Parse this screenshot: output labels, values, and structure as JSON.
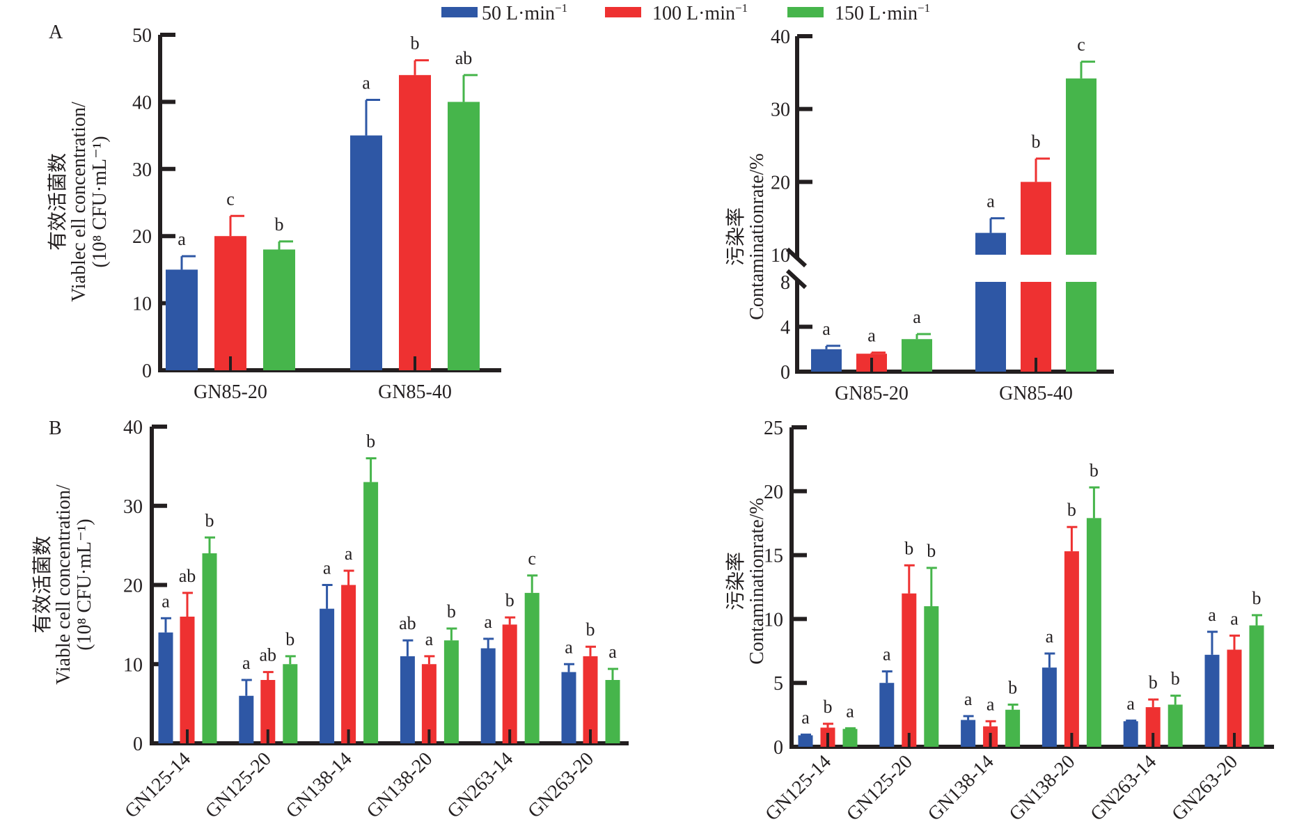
{
  "legend": {
    "items": [
      {
        "label": "50 L·min",
        "sup": "−1",
        "color": "#2E57A5"
      },
      {
        "label": "100 L·min",
        "sup": "−1",
        "color": "#EE3131"
      },
      {
        "label": "150 L·min",
        "sup": "−1",
        "color": "#46B54B"
      }
    ]
  },
  "chart_data": [
    {
      "panel": "A",
      "position": "top-left",
      "type": "bar",
      "title": "",
      "xlabel": "",
      "ylabel_lines": [
        "有效活菌数",
        "Viablec ell concentration/",
        "(10⁸ CFU·mL⁻¹)"
      ],
      "ylim": [
        0,
        50
      ],
      "yticks": [
        0,
        10,
        20,
        30,
        40,
        50
      ],
      "categories": [
        "GN85-20",
        "GN85-40"
      ],
      "series": [
        {
          "name": "50 L·min⁻¹",
          "values": [
            15,
            35
          ],
          "errors": [
            2,
            5.3
          ],
          "letters": [
            "a",
            "a"
          ]
        },
        {
          "name": "100 L·min⁻¹",
          "values": [
            20,
            44
          ],
          "errors": [
            3,
            2.2
          ],
          "letters": [
            "c",
            "b"
          ]
        },
        {
          "name": "150 L·min⁻¹",
          "values": [
            18,
            40
          ],
          "errors": [
            1.2,
            4
          ],
          "letters": [
            "b",
            "ab"
          ]
        }
      ]
    },
    {
      "panel": "",
      "position": "top-right",
      "type": "bar",
      "title": "",
      "xlabel": "",
      "ylabel_lines": [
        "污染率",
        "Contaminationrate/%"
      ],
      "ylim": [
        0,
        40
      ],
      "axis_break": [
        8,
        10
      ],
      "yticks": [
        0,
        4,
        8,
        10,
        20,
        30,
        40
      ],
      "categories": [
        "GN85-20",
        "GN85-40"
      ],
      "series": [
        {
          "name": "50 L·min⁻¹",
          "values": [
            2.0,
            13
          ],
          "errors": [
            0.3,
            2
          ],
          "letters": [
            "a",
            "a"
          ]
        },
        {
          "name": "100 L·min⁻¹",
          "values": [
            1.6,
            20
          ],
          "errors": [
            0.1,
            3.2
          ],
          "letters": [
            "a",
            "b"
          ]
        },
        {
          "name": "150 L·min⁻¹",
          "values": [
            2.9,
            34.2
          ],
          "errors": [
            0.45,
            2.3
          ],
          "letters": [
            "a",
            "c"
          ]
        }
      ]
    },
    {
      "panel": "B",
      "position": "bottom-left",
      "type": "bar",
      "title": "",
      "xlabel": "",
      "ylabel_lines": [
        "有效活菌数",
        "Viable cell concentration/",
        "(10⁸ CFU·mL⁻¹)"
      ],
      "ylim": [
        0,
        40
      ],
      "yticks": [
        0,
        10,
        20,
        30,
        40
      ],
      "categories": [
        "GN125-14",
        "GN125-20",
        "GN138-14",
        "GN138-20",
        "GN263-14",
        "GN263-20"
      ],
      "series": [
        {
          "name": "50 L·min⁻¹",
          "values": [
            14,
            6,
            17,
            11,
            12,
            9
          ],
          "errors": [
            1.8,
            2,
            3,
            2,
            1.2,
            1
          ],
          "letters": [
            "a",
            "a",
            "a",
            "ab",
            "a",
            "a"
          ]
        },
        {
          "name": "100 L·min⁻¹",
          "values": [
            16,
            8,
            20,
            10,
            15,
            11
          ],
          "errors": [
            3,
            1,
            1.8,
            1,
            0.9,
            1.2
          ],
          "letters": [
            "ab",
            "ab",
            "a",
            "a",
            "b",
            "b"
          ]
        },
        {
          "name": "150 L·min⁻¹",
          "values": [
            24,
            10,
            33,
            13,
            19,
            8
          ],
          "errors": [
            2,
            1,
            3,
            1.5,
            2.2,
            1.4
          ],
          "letters": [
            "b",
            "b",
            "b",
            "b",
            "c",
            "a"
          ]
        }
      ]
    },
    {
      "panel": "",
      "position": "bottom-right",
      "type": "bar",
      "title": "",
      "xlabel": "",
      "ylabel_lines": [
        "污染率",
        "Contaminationrate/%"
      ],
      "ylim": [
        0,
        25
      ],
      "yticks": [
        0,
        5,
        10,
        15,
        20,
        25
      ],
      "categories": [
        "GN125-14",
        "GN125-20",
        "GN138-14",
        "GN138-20",
        "GN263-14",
        "GN263-20"
      ],
      "series": [
        {
          "name": "50 L·min⁻¹",
          "values": [
            0.9,
            5,
            2.1,
            6.2,
            2.0,
            7.2
          ],
          "errors": [
            0.05,
            0.9,
            0.3,
            1.1,
            0.05,
            1.8
          ],
          "letters": [
            "a",
            "a",
            "a",
            "a",
            "a",
            "a"
          ]
        },
        {
          "name": "100 L·min⁻¹",
          "values": [
            1.5,
            12,
            1.6,
            15.3,
            3.1,
            7.6
          ],
          "errors": [
            0.3,
            2.2,
            0.4,
            1.9,
            0.6,
            1.1
          ],
          "letters": [
            "b",
            "b",
            "a",
            "b",
            "b",
            "a"
          ]
        },
        {
          "name": "150 L·min⁻¹",
          "values": [
            1.4,
            11,
            2.9,
            17.9,
            3.3,
            9.5
          ],
          "errors": [
            0.05,
            3,
            0.4,
            2.4,
            0.7,
            0.8
          ],
          "letters": [
            "a",
            "b",
            "b",
            "b",
            "b",
            "b"
          ]
        }
      ]
    }
  ]
}
